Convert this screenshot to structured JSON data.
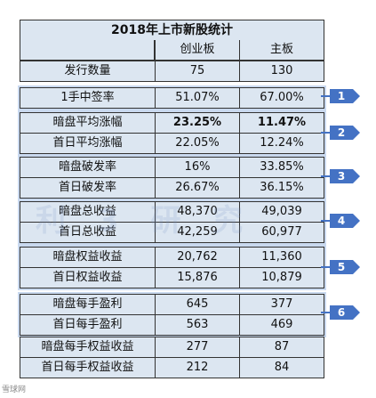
{
  "table": {
    "title": "2018年上市新股统计",
    "headers": [
      "创业板",
      "主板"
    ],
    "rows": [
      {
        "label": "发行数量",
        "chinext": "75",
        "main": "130"
      },
      {
        "label": "1手中签率",
        "chinext": "51.07%",
        "main": "67.00%"
      },
      {
        "label": "暗盘平均涨幅",
        "chinext": "23.25%",
        "main": "11.47%"
      },
      {
        "label": "首日平均涨幅",
        "chinext": "22.05%",
        "main": "12.24%"
      },
      {
        "label": "暗盘破发率",
        "chinext": "16%",
        "main": "33.85%"
      },
      {
        "label": "首日破发率",
        "chinext": "26.67%",
        "main": "36.15%"
      },
      {
        "label": "暗盘总收益",
        "chinext": "48,370",
        "main": "49,039"
      },
      {
        "label": "首日总收益",
        "chinext": "42,259",
        "main": "60,977"
      },
      {
        "label": "暗盘权益收益",
        "chinext": "20,762",
        "main": "11,360"
      },
      {
        "label": "首日权益收益",
        "chinext": "15,876",
        "main": "10,879"
      },
      {
        "label": "暗盘每手盈利",
        "chinext": "645",
        "main": "377"
      },
      {
        "label": "首日每手盈利",
        "chinext": "563",
        "main": "469"
      },
      {
        "label": "暗盘每手权益收益",
        "chinext": "277",
        "main": "87"
      },
      {
        "label": "首日每手权益收益",
        "chinext": "212",
        "main": "84"
      }
    ]
  },
  "badges": [
    "1",
    "2",
    "3",
    "4",
    "5",
    "6"
  ],
  "watermark": "利 3 研 究",
  "footer": "雪球网"
}
